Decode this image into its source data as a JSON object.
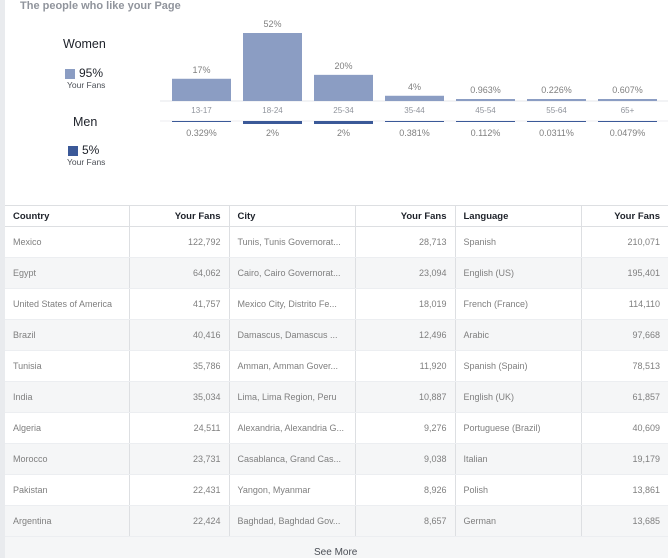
{
  "header": {
    "title": "The people who like your Page"
  },
  "gender": {
    "women": {
      "label": "Women",
      "percent": "95%",
      "sublabel": "Your Fans",
      "color": "#8b9dc3"
    },
    "men": {
      "label": "Men",
      "percent": "5%",
      "sublabel": "Your Fans",
      "color": "#3b5998"
    }
  },
  "chart_data": {
    "type": "bar",
    "categories": [
      "13-17",
      "18-24",
      "25-34",
      "35-44",
      "45-54",
      "55-64",
      "65+"
    ],
    "series": [
      {
        "name": "Women",
        "values": [
          17,
          52,
          20,
          4,
          0.963,
          0.226,
          0.607
        ],
        "labels": [
          "17%",
          "52%",
          "20%",
          "4%",
          "0.963%",
          "0.226%",
          "0.607%"
        ],
        "color": "#8b9dc3"
      },
      {
        "name": "Men",
        "values": [
          0.329,
          2,
          2,
          0.381,
          0.112,
          0.0311,
          0.0479
        ],
        "labels": [
          "0.329%",
          "2%",
          "2%",
          "0.381%",
          "0.112%",
          "0.0311%",
          "0.0479%"
        ],
        "color": "#3b5998"
      }
    ]
  },
  "countries": {
    "header": "Country",
    "fans_header": "Your Fans",
    "rows": [
      {
        "name": "Mexico",
        "fans": "122,792"
      },
      {
        "name": "Egypt",
        "fans": "64,062"
      },
      {
        "name": "United States of America",
        "fans": "41,757"
      },
      {
        "name": "Brazil",
        "fans": "40,416"
      },
      {
        "name": "Tunisia",
        "fans": "35,786"
      },
      {
        "name": "India",
        "fans": "35,034"
      },
      {
        "name": "Algeria",
        "fans": "24,511"
      },
      {
        "name": "Morocco",
        "fans": "23,731"
      },
      {
        "name": "Pakistan",
        "fans": "22,431"
      },
      {
        "name": "Argentina",
        "fans": "22,424"
      }
    ]
  },
  "cities": {
    "header": "City",
    "fans_header": "Your Fans",
    "rows": [
      {
        "name": "Tunis, Tunis Governorat...",
        "fans": "28,713"
      },
      {
        "name": "Cairo, Cairo Governorat...",
        "fans": "23,094"
      },
      {
        "name": "Mexico City, Distrito Fe...",
        "fans": "18,019"
      },
      {
        "name": "Damascus, Damascus ...",
        "fans": "12,496"
      },
      {
        "name": "Amman, Amman Gover...",
        "fans": "11,920"
      },
      {
        "name": "Lima, Lima Region, Peru",
        "fans": "10,887"
      },
      {
        "name": "Alexandria, Alexandria G...",
        "fans": "9,276"
      },
      {
        "name": "Casablanca, Grand Cas...",
        "fans": "9,038"
      },
      {
        "name": "Yangon, Myanmar",
        "fans": "8,926"
      },
      {
        "name": "Baghdad, Baghdad Gov...",
        "fans": "8,657"
      }
    ]
  },
  "languages": {
    "header": "Language",
    "fans_header": "Your Fans",
    "rows": [
      {
        "name": "Spanish",
        "fans": "210,071"
      },
      {
        "name": "English (US)",
        "fans": "195,401"
      },
      {
        "name": "French (France)",
        "fans": "114,110"
      },
      {
        "name": "Arabic",
        "fans": "97,668"
      },
      {
        "name": "Spanish (Spain)",
        "fans": "78,513"
      },
      {
        "name": "English (UK)",
        "fans": "61,857"
      },
      {
        "name": "Portuguese (Brazil)",
        "fans": "40,609"
      },
      {
        "name": "Italian",
        "fans": "19,179"
      },
      {
        "name": "Polish",
        "fans": "13,861"
      },
      {
        "name": "German",
        "fans": "13,685"
      }
    ]
  },
  "footer": {
    "see_more": "See More"
  }
}
